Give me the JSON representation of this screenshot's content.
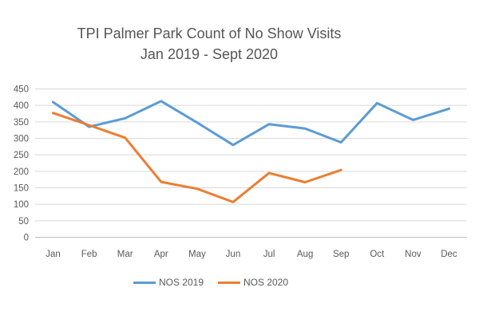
{
  "title": {
    "line1": "TPI Palmer Park Count of No Show Visits",
    "line2": "Jan 2019 - Sept 2020"
  },
  "chart_data": {
    "type": "line",
    "title": "TPI Palmer Park Count of No Show Visits Jan 2019 - Sept 2020",
    "categories": [
      "Jan",
      "Feb",
      "Mar",
      "Apr",
      "May",
      "Jun",
      "Jul",
      "Aug",
      "Sep",
      "Oct",
      "Nov",
      "Dec"
    ],
    "series": [
      {
        "name": "NOS 2019",
        "color": "#5B9BD5",
        "values": [
          410,
          335,
          361,
          413,
          348,
          280,
          343,
          330,
          288,
          407,
          356,
          390
        ]
      },
      {
        "name": "NOS 2020",
        "color": "#ED7D31",
        "values": [
          377,
          340,
          302,
          168,
          147,
          107,
          195,
          167,
          204,
          null,
          null,
          null
        ]
      }
    ],
    "xlabel": "",
    "ylabel": "",
    "ylim": [
      0,
      450
    ],
    "yticks": [
      0,
      50,
      100,
      150,
      200,
      250,
      300,
      350,
      400,
      450
    ],
    "grid": true,
    "legend_position": "bottom"
  },
  "colors": {
    "gridline": "#D9D9D9",
    "axis_line": "#BFBFBF",
    "title_text": "#555555",
    "axis_text": "#595959",
    "background": "#FFFFFF"
  }
}
